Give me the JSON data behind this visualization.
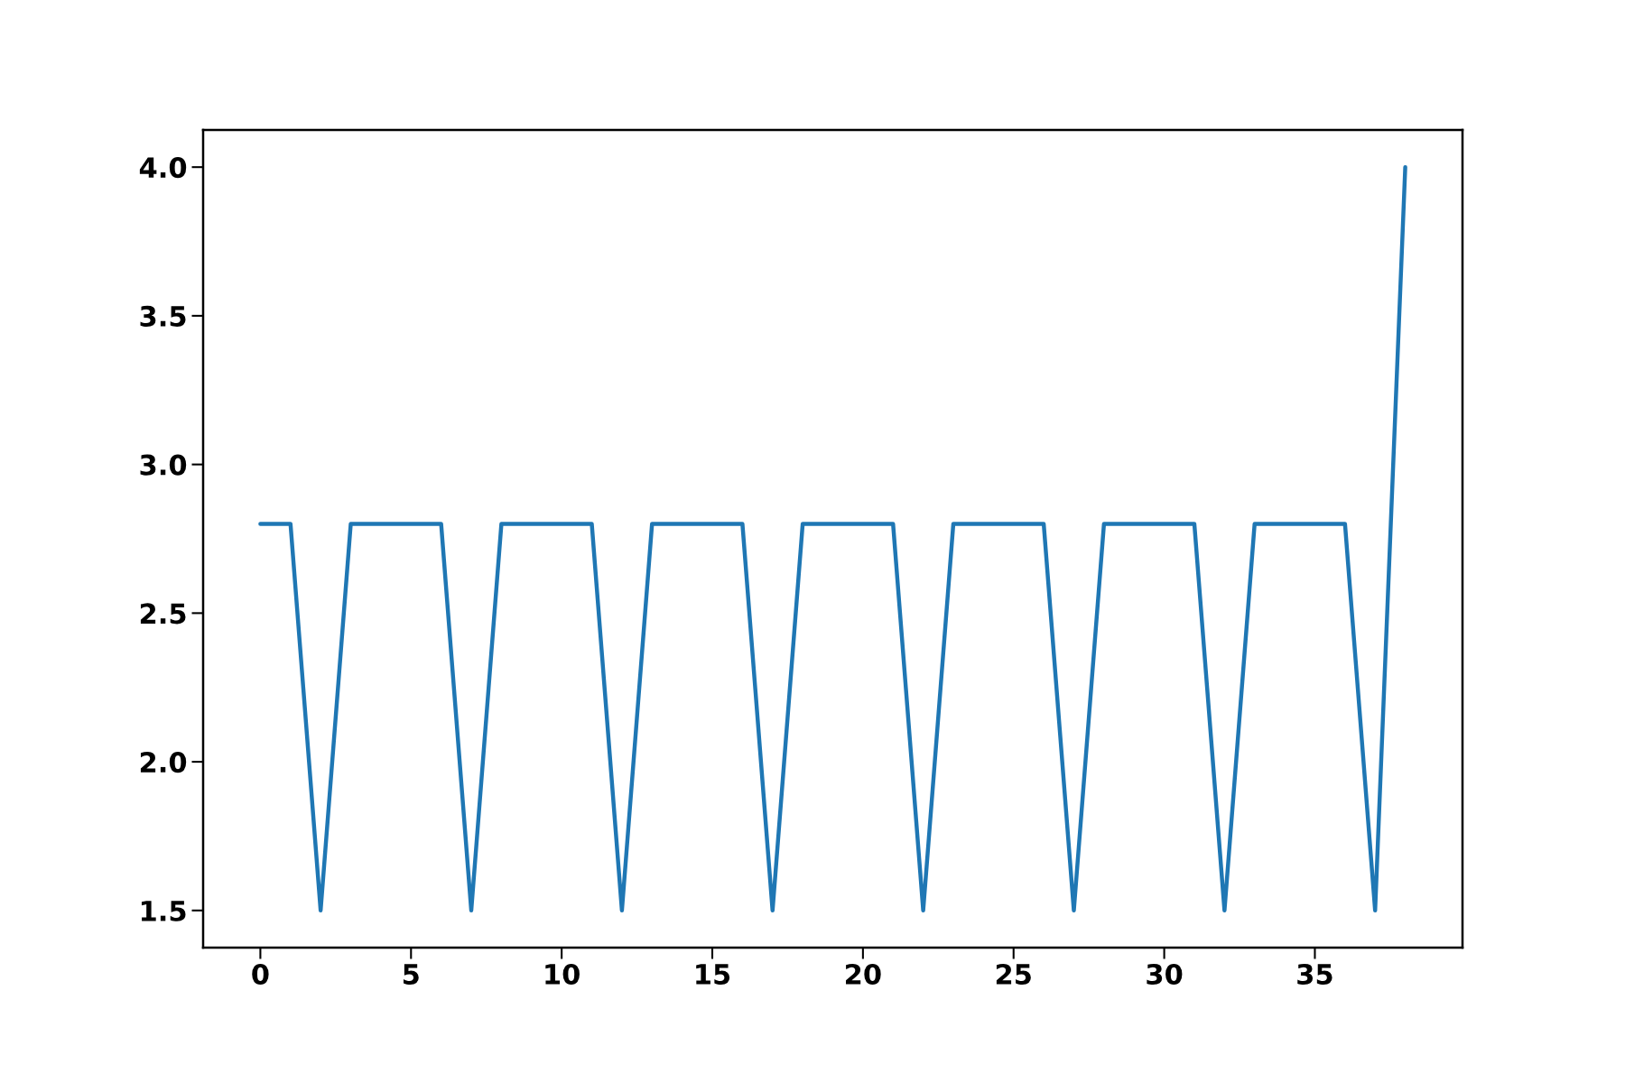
{
  "chart_data": {
    "type": "line",
    "x": [
      0,
      1,
      2,
      3,
      4,
      5,
      6,
      7,
      8,
      9,
      10,
      11,
      12,
      13,
      14,
      15,
      16,
      17,
      18,
      19,
      20,
      21,
      22,
      23,
      24,
      25,
      26,
      27,
      28,
      29,
      30,
      31,
      32,
      33,
      34,
      35,
      36,
      37,
      38
    ],
    "series": [
      {
        "color": "#1f77b4",
        "values": [
          2.8,
          2.8,
          1.5,
          2.8,
          2.8,
          2.8,
          2.8,
          1.5,
          2.8,
          2.8,
          2.8,
          2.8,
          1.5,
          2.8,
          2.8,
          2.8,
          2.8,
          1.5,
          2.8,
          2.8,
          2.8,
          2.8,
          1.5,
          2.8,
          2.8,
          2.8,
          2.8,
          1.5,
          2.8,
          2.8,
          2.8,
          2.8,
          1.5,
          2.8,
          2.8,
          2.8,
          2.8,
          1.5,
          4.0
        ]
      }
    ],
    "xlim": [
      -1.9,
      39.9
    ],
    "ylim": [
      1.375,
      4.125
    ],
    "xticks": [
      0,
      5,
      10,
      15,
      20,
      25,
      30,
      35
    ],
    "yticks": [
      1.5,
      {
        "value": 2,
        "label": "2.0"
      },
      2.5,
      {
        "value": 3,
        "label": "3.0"
      },
      3.5,
      {
        "value": 4,
        "label": "4.0"
      }
    ],
    "grid": false,
    "legend": false,
    "marker": "none",
    "line_style": "solid"
  }
}
